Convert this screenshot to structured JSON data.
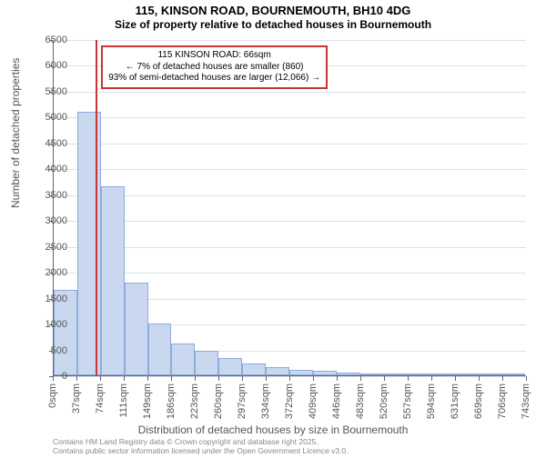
{
  "title": {
    "line1": "115, KINSON ROAD, BOURNEMOUTH, BH10 4DG",
    "line2": "Size of property relative to detached houses in Bournemouth"
  },
  "ylabel": "Number of detached properties",
  "xlabel": "Distribution of detached houses by size in Bournemouth",
  "y_axis": {
    "min": 0,
    "max": 6500,
    "ticks": [
      0,
      500,
      1000,
      1500,
      2000,
      2500,
      3000,
      3500,
      4000,
      4500,
      5000,
      5500,
      6000,
      6500
    ]
  },
  "x_axis": {
    "ticks": [
      0,
      37,
      74,
      111,
      149,
      186,
      223,
      260,
      297,
      334,
      372,
      409,
      446,
      483,
      520,
      557,
      594,
      631,
      669,
      706,
      743
    ],
    "unit": "sqm"
  },
  "bars": {
    "bin_width": 37,
    "values": [
      1650,
      5100,
      3650,
      1800,
      1000,
      620,
      480,
      340,
      230,
      160,
      110,
      80,
      60,
      40,
      25,
      18,
      12,
      8,
      5,
      3
    ],
    "fill": "#c9d8ef",
    "stroke": "#8faadc"
  },
  "marker": {
    "x": 66,
    "color": "#cc3333"
  },
  "callout": {
    "line1": "115 KINSON ROAD: 66sqm",
    "line2": "← 7% of detached houses are smaller (860)",
    "line3": "93% of semi-detached houses are larger (12,066) →",
    "border_color": "#cc3333"
  },
  "grid": {
    "color": "#d7e2ef"
  },
  "footer": {
    "line1": "Contains HM Land Registry data © Crown copyright and database right 2025.",
    "line2": "Contains public sector information licensed under the Open Government Licence v3.0."
  },
  "fonts": {
    "title_size": 13,
    "subtitle_size": 12,
    "axis_title_size": 12,
    "tick_size": 11,
    "callout_size": 10,
    "footer_size": 8.5
  },
  "colors": {
    "axis": "#666666",
    "tick_text": "#555555",
    "background": "#ffffff"
  }
}
